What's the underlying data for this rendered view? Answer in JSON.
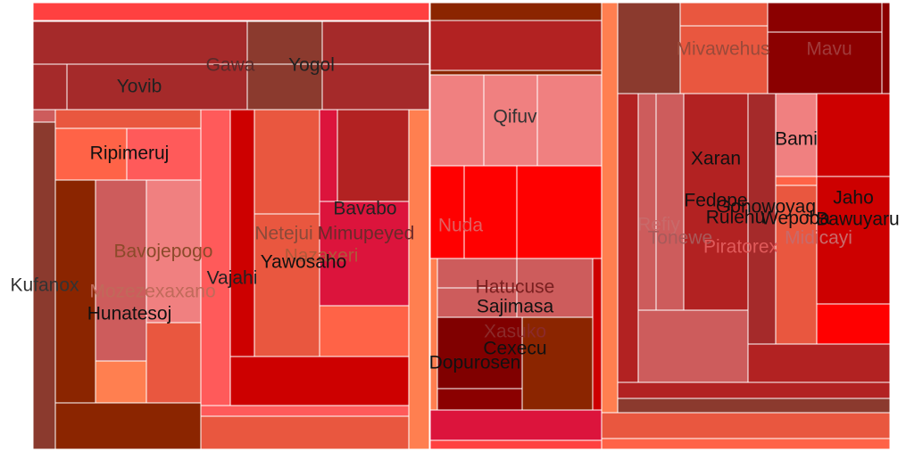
{
  "chart_data": {
    "type": "treemap",
    "title": "",
    "labels": [
      "Kufanox",
      "Yovib",
      "Gawa",
      "Yogol",
      "Ripimeruj",
      "Bavojepogo",
      "Mozezexaxano",
      "Hunatesoj",
      "Vajahi",
      "Netejui",
      "Mimupeyed",
      "Nazaxeri",
      "Bavabo",
      "Yawosaho",
      "Qifuv",
      "Nuda",
      "Hatucuse",
      "Sajimasa",
      "Xasuko",
      "Cexecu",
      "Dopurosen",
      "Mivawehus",
      "Mavu",
      "Bami",
      "Xaran",
      "Fedope",
      "Rulehu",
      "Gonowoyag",
      "Wepoba",
      "Bawuyaru",
      "Jaho",
      "Refiy",
      "Tonewe",
      "Midicayi",
      "Piratorex"
    ],
    "tile_colors": [
      "#ff4040",
      "#ff5a5a",
      "#f08080",
      "#ff7f50",
      "#ff6347",
      "#cd5c5c",
      "#dc143c",
      "#b22222",
      "#a52a2a",
      "#800000",
      "#8b0000",
      "#8b2500",
      "#8b3a2e",
      "#cd0000",
      "#ff0000",
      "#e9573f",
      "#ff6666",
      "#a0522d"
    ]
  }
}
